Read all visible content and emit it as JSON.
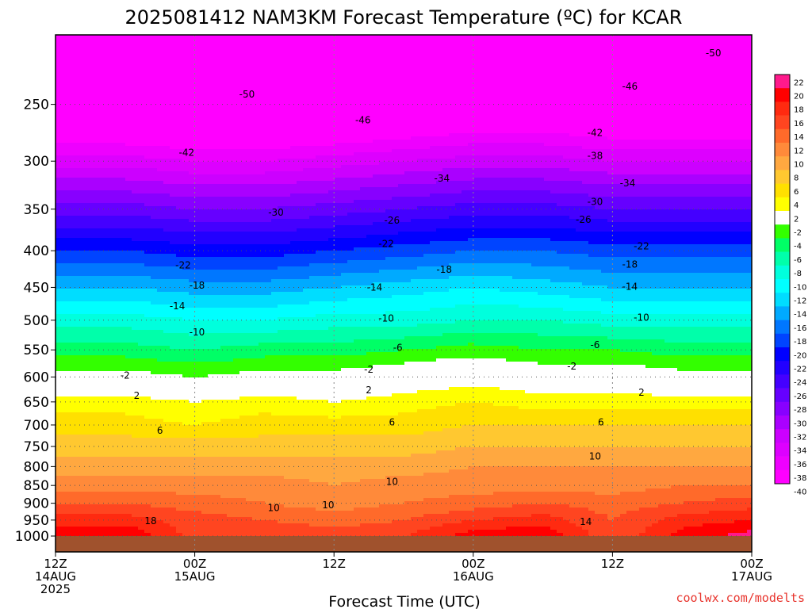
{
  "title": "2025081412 NAM3KM Forecast Temperature (ºC) for KCAR",
  "credit": "coolwx.com/modelts",
  "chart_data": {
    "type": "heatmap",
    "title": "2025081412 NAM3KM Forecast Temperature (ºC) for KCAR",
    "xlabel": "Forecast Time (UTC)",
    "ylabel": "",
    "x_range_hours": [
      0,
      60
    ],
    "y_range_hPa": [
      1000,
      200
    ],
    "y_scale": "log",
    "grid": true,
    "y_ticks": [
      250,
      300,
      350,
      400,
      450,
      500,
      550,
      600,
      650,
      700,
      750,
      800,
      850,
      900,
      950,
      1000
    ],
    "x_ticks": [
      {
        "hour": 0,
        "lines": [
          "12Z",
          "14AUG",
          "2025"
        ]
      },
      {
        "hour": 12,
        "lines": [
          "00Z",
          "15AUG"
        ]
      },
      {
        "hour": 24,
        "lines": [
          "12Z"
        ]
      },
      {
        "hour": 36,
        "lines": [
          "00Z",
          "16AUG"
        ]
      },
      {
        "hour": 48,
        "lines": [
          "12Z"
        ]
      },
      {
        "hour": 60,
        "lines": [
          "00Z",
          "17AUG"
        ]
      }
    ],
    "colorbar_labels": [
      22,
      20,
      18,
      16,
      14,
      12,
      10,
      8,
      6,
      4,
      2,
      -2,
      -4,
      -6,
      -8,
      -10,
      -12,
      -14,
      -16,
      -18,
      -20,
      -22,
      -24,
      -26,
      -28,
      -30,
      -32,
      -34,
      -36,
      -38,
      -40
    ],
    "colorbar_colors": [
      "#ff1a8c",
      "#ff0000",
      "#ff2a10",
      "#ff4520",
      "#ff6a2a",
      "#ff8a3a",
      "#ffa840",
      "#ffc830",
      "#ffe000",
      "#ffff00",
      "#ffffff",
      "#33ff00",
      "#00ff66",
      "#00ffaa",
      "#00ffdd",
      "#00ffff",
      "#00ddff",
      "#00aaff",
      "#0077ff",
      "#0044ff",
      "#0000ff",
      "#2200ff",
      "#4400ff",
      "#6600ff",
      "#8800ff",
      "#aa00ff",
      "#cc00ff",
      "#dd00ff",
      "#ee00ff",
      "#ff00ff"
    ],
    "profile_pressures": [
      1000,
      950,
      900,
      850,
      800,
      750,
      700,
      650,
      600,
      550,
      500,
      450,
      400,
      350,
      300,
      250,
      200
    ],
    "profiles": [
      {
        "hour": 0,
        "temps": [
          19,
          17,
          14,
          11,
          9,
          7,
          5,
          3,
          -1,
          -5,
          -9,
          -14,
          -20,
          -27,
          -35,
          -45,
          -53
        ]
      },
      {
        "hour": 6,
        "temps": [
          20,
          17,
          14,
          11,
          9,
          7,
          5,
          3,
          -1,
          -5,
          -9,
          -14,
          -20,
          -27,
          -35,
          -45,
          -53
        ]
      },
      {
        "hour": 12,
        "temps": [
          15,
          15,
          13,
          11,
          9,
          7,
          4,
          2,
          -2,
          -6,
          -10,
          -15,
          -21,
          -28,
          -36,
          -46,
          -54
        ]
      },
      {
        "hour": 18,
        "temps": [
          16,
          14,
          12,
          11,
          9,
          7,
          5,
          3,
          -1,
          -5,
          -10,
          -15,
          -21,
          -28,
          -36,
          -46,
          -54
        ]
      },
      {
        "hour": 24,
        "temps": [
          15,
          13,
          11,
          10,
          9,
          7,
          5,
          2,
          -1,
          -5,
          -9,
          -14,
          -20,
          -27,
          -35,
          -45,
          -53
        ]
      },
      {
        "hour": 30,
        "temps": [
          16,
          14,
          12,
          11,
          9,
          7,
          5,
          3,
          0,
          -4,
          -9,
          -13,
          -19,
          -26,
          -34,
          -44,
          -52
        ]
      },
      {
        "hour": 36,
        "temps": [
          19,
          16,
          13,
          11,
          10,
          8,
          6,
          4,
          1,
          -3,
          -8,
          -12,
          -18,
          -25,
          -33,
          -43,
          -52
        ]
      },
      {
        "hour": 42,
        "temps": [
          20,
          17,
          14,
          11,
          10,
          8,
          6,
          3,
          0,
          -4,
          -8,
          -13,
          -18,
          -25,
          -33,
          -43,
          -52
        ]
      },
      {
        "hour": 48,
        "temps": [
          14,
          14,
          13,
          11,
          10,
          8,
          6,
          3,
          0,
          -4,
          -9,
          -14,
          -19,
          -26,
          -34,
          -44,
          -52
        ]
      },
      {
        "hour": 54,
        "temps": [
          19,
          17,
          14,
          12,
          10,
          8,
          6,
          3,
          -1,
          -5,
          -9,
          -14,
          -19,
          -26,
          -34,
          -44,
          -52
        ]
      },
      {
        "hour": 60,
        "temps": [
          21,
          18,
          15,
          12,
          10,
          8,
          6,
          3,
          -1,
          -5,
          -9,
          -14,
          -19,
          -26,
          -34,
          -44,
          -52
        ]
      }
    ],
    "contour_labels": [
      {
        "value": "-50",
        "hour": 56.7,
        "p": 212
      },
      {
        "value": "-50",
        "hour": 16.5,
        "p": 242
      },
      {
        "value": "-46",
        "hour": 26.5,
        "p": 263
      },
      {
        "value": "-46",
        "hour": 49.5,
        "p": 236
      },
      {
        "value": "-42",
        "hour": 11.3,
        "p": 292
      },
      {
        "value": "-42",
        "hour": 46.5,
        "p": 274
      },
      {
        "value": "-38",
        "hour": 46.5,
        "p": 295
      },
      {
        "value": "-34",
        "hour": 33.3,
        "p": 317
      },
      {
        "value": "-34",
        "hour": 49.3,
        "p": 322
      },
      {
        "value": "-30",
        "hour": 19,
        "p": 354
      },
      {
        "value": "-30",
        "hour": 46.5,
        "p": 342
      },
      {
        "value": "-26",
        "hour": 29,
        "p": 363
      },
      {
        "value": "-26",
        "hour": 45.5,
        "p": 362
      },
      {
        "value": "-22",
        "hour": 11,
        "p": 419
      },
      {
        "value": "-22",
        "hour": 28.5,
        "p": 391
      },
      {
        "value": "-22",
        "hour": 50.5,
        "p": 394
      },
      {
        "value": "-18",
        "hour": 12.2,
        "p": 447
      },
      {
        "value": "-18",
        "hour": 33.5,
        "p": 425
      },
      {
        "value": "-18",
        "hour": 49.5,
        "p": 418
      },
      {
        "value": "-14",
        "hour": 10.5,
        "p": 478
      },
      {
        "value": "-14",
        "hour": 27.5,
        "p": 450
      },
      {
        "value": "-14",
        "hour": 49.5,
        "p": 449
      },
      {
        "value": "-10",
        "hour": 12.2,
        "p": 520
      },
      {
        "value": "-10",
        "hour": 28.5,
        "p": 497
      },
      {
        "value": "-10",
        "hour": 50.5,
        "p": 496
      },
      {
        "value": "-6",
        "hour": 29.5,
        "p": 546
      },
      {
        "value": "-6",
        "hour": 46.5,
        "p": 541
      },
      {
        "value": "-2",
        "hour": 6,
        "p": 597
      },
      {
        "value": "-2",
        "hour": 27,
        "p": 586
      },
      {
        "value": "-2",
        "hour": 44.5,
        "p": 580
      },
      {
        "value": "2",
        "hour": 7,
        "p": 637
      },
      {
        "value": "2",
        "hour": 27,
        "p": 626
      },
      {
        "value": "2",
        "hour": 50.5,
        "p": 631
      },
      {
        "value": "6",
        "hour": 9,
        "p": 713
      },
      {
        "value": "6",
        "hour": 29,
        "p": 694
      },
      {
        "value": "6",
        "hour": 47,
        "p": 694
      },
      {
        "value": "10",
        "hour": 29,
        "p": 840
      },
      {
        "value": "10",
        "hour": 18.8,
        "p": 914
      },
      {
        "value": "10",
        "hour": 23.5,
        "p": 905
      },
      {
        "value": "10",
        "hour": 46.5,
        "p": 774
      },
      {
        "value": "18",
        "hour": 8.2,
        "p": 953
      },
      {
        "value": "14",
        "hour": 45.7,
        "p": 955
      }
    ]
  }
}
